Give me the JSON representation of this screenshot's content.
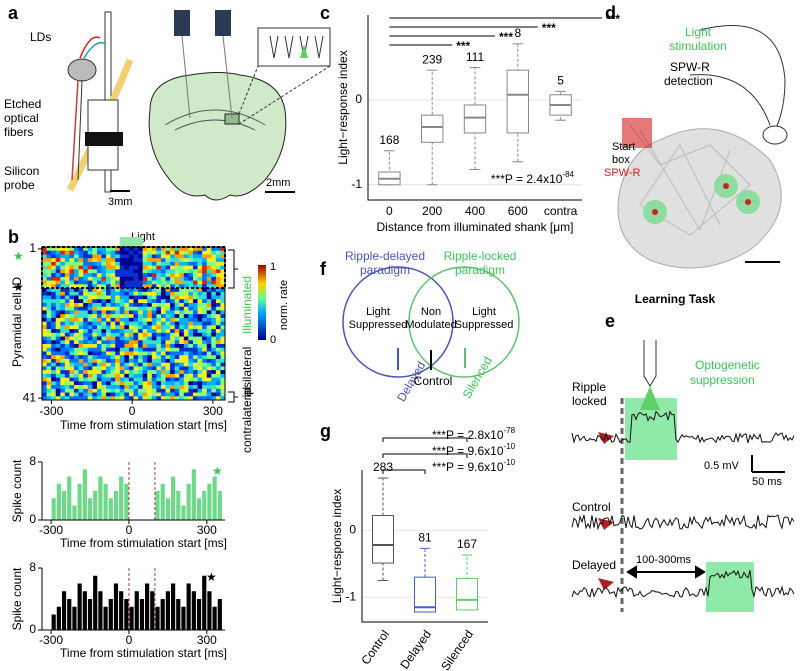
{
  "figure": {
    "panel_labels": [
      "a",
      "b",
      "c",
      "d",
      "e",
      "f",
      "g"
    ],
    "a": {
      "lds": "LDs",
      "fibers": [
        "Etched",
        "optical",
        "fibers"
      ],
      "probe": [
        "Silicon",
        "probe"
      ],
      "scale_left": "3mm",
      "scale_right": "2mm"
    },
    "b": {
      "light": "Light",
      "colorbar_label": "norm. rate",
      "colorbar_ticks": [
        "1",
        "0"
      ],
      "illuminated": "Illuminated",
      "ipsilateral": "ipsilateral",
      "contralateral": "contralateral",
      "ylabel": "Pyramidal cell ID"
    },
    "d": {
      "light_stimulation": [
        "Light",
        "stimulation"
      ],
      "detection": [
        "SPW-R",
        "detection"
      ],
      "start_box": [
        "Start",
        "box"
      ],
      "spwr": "SPW-R",
      "title": "Learning Task"
    },
    "e": {
      "ripple_locked": [
        "Ripple",
        "locked"
      ],
      "optogenetic": [
        "Optogenetic",
        "suppression"
      ],
      "scale_mv": "0.5 mV",
      "scale_ms": "50 ms",
      "control": "Control",
      "delayed": "Delayed",
      "interval": "100-300ms"
    },
    "f": {
      "delayed_paradigm": [
        "Ripple-delayed",
        "paradigm"
      ],
      "locked_paradigm": [
        "Ripple-locked",
        "paradigm"
      ],
      "left": [
        "Light",
        "Suppressed"
      ],
      "middle": [
        "Non",
        "Modulated"
      ],
      "right": [
        "Light",
        "Suppressed"
      ],
      "delayed": "Delayed",
      "control": "Control",
      "silenced": "Silenced"
    }
  },
  "chart_data": [
    {
      "type": "heatmap",
      "xlabel": "Time from stimulation start [ms]",
      "xlim": [
        -335,
        345
      ],
      "xticks": [
        -300,
        0,
        300
      ],
      "ylim": [
        0.5,
        41.5
      ],
      "yticks": [
        1,
        41
      ]
    },
    {
      "type": "box",
      "ylabel": "Light−response index",
      "xlabel": "Distance from illuminated shank [μm]",
      "categories": [
        "0",
        "200",
        "400",
        "600",
        "contra"
      ],
      "color": "#888888",
      "boxes": [
        {
          "whislo": -1.0,
          "q1": -1.0,
          "med": -0.93,
          "q3": -0.85,
          "whishi": -0.6
        },
        {
          "whislo": -1.0,
          "q1": -0.5,
          "med": -0.32,
          "q3": -0.18,
          "whishi": 0.35
        },
        {
          "whislo": -0.82,
          "q1": -0.39,
          "med": -0.21,
          "q3": -0.06,
          "whishi": 0.38
        },
        {
          "whislo": -0.73,
          "q1": -0.39,
          "med": 0.06,
          "q3": 0.35,
          "whishi": 0.66
        },
        {
          "whislo": -0.24,
          "q1": -0.18,
          "med": -0.06,
          "q3": 0.06,
          "whishi": 0.1
        }
      ],
      "counts": [
        168,
        239,
        111,
        8,
        5
      ],
      "significance": [
        "***",
        "***",
        "***",
        "***"
      ],
      "annotation": {
        "text": "***P = 2.4x10",
        "exponent": "-84"
      },
      "ylim": [
        -1.18,
        1.0
      ],
      "yticks": [
        -1,
        0
      ]
    },
    {
      "type": "histogram",
      "ylabel": "Spike count",
      "xlabel": "Time from stimulation start [ms]",
      "color": "#6fd98a",
      "bins": [
        -300,
        -280,
        -260,
        -240,
        -220,
        -200,
        -180,
        -160,
        -140,
        -120,
        -100,
        -80,
        -60,
        -40,
        -20,
        0,
        20,
        40,
        60,
        80,
        100,
        120,
        140,
        160,
        180,
        200,
        220,
        240,
        260,
        280,
        300,
        320,
        340,
        360
      ],
      "values": [
        3,
        5,
        4,
        6,
        2,
        5,
        7,
        3,
        4,
        6,
        5,
        3,
        4,
        6,
        5,
        0,
        0,
        0,
        0,
        0,
        4,
        5,
        3,
        6,
        4,
        2,
        5,
        7,
        3,
        4,
        5,
        6,
        4
      ],
      "vlines": [
        0,
        100
      ],
      "xlim": [
        -335,
        370
      ],
      "xticks": [
        -300,
        0,
        300
      ],
      "ylim": [
        0,
        8
      ],
      "yticks": [
        0,
        8
      ]
    },
    {
      "type": "histogram",
      "ylabel": "Spike count",
      "xlabel": "Time from stimulation start [ms]",
      "color": "#000000",
      "bins": [
        -300,
        -280,
        -260,
        -240,
        -220,
        -200,
        -180,
        -160,
        -140,
        -120,
        -100,
        -80,
        -60,
        -40,
        -20,
        0,
        20,
        40,
        60,
        80,
        100,
        120,
        140,
        160,
        180,
        200,
        220,
        240,
        260,
        280,
        300,
        320,
        340,
        360
      ],
      "values": [
        2,
        3,
        5,
        4,
        3,
        6,
        5,
        4,
        7,
        5,
        3,
        4,
        6,
        5,
        4,
        3,
        5,
        4,
        6,
        5,
        3,
        4,
        5,
        6,
        4,
        3,
        6,
        5,
        4,
        7,
        5,
        3,
        4
      ],
      "vlines": [
        0,
        100
      ],
      "xlim": [
        -335,
        370
      ],
      "xticks": [
        -300,
        0,
        300
      ],
      "ylim": [
        0,
        8
      ],
      "yticks": [
        0,
        8
      ]
    },
    {
      "type": "box",
      "ylabel": "Light−response index",
      "categories": [
        "Control",
        "Delayed",
        "Silenced"
      ],
      "colors": [
        "#555555",
        "#4a5fc1",
        "#5fd068"
      ],
      "boxes": [
        {
          "whislo": -0.75,
          "q1": -0.49,
          "med": -0.22,
          "q3": 0.22,
          "whishi": 0.78
        },
        {
          "whislo": -1.22,
          "q1": -1.22,
          "med": -1.15,
          "q3": -0.7,
          "whishi": -0.27
        },
        {
          "whislo": -1.19,
          "q1": -1.19,
          "med": -1.04,
          "q3": -0.72,
          "whishi": -0.37
        }
      ],
      "counts": [
        283,
        81,
        167
      ],
      "annotations": [
        {
          "text": "***P = 2.8x10",
          "exponent": "-78"
        },
        {
          "text": "***P = 9.6x10",
          "exponent": "-10"
        },
        {
          "text": "***P = 9.6x10",
          "exponent": "-10"
        }
      ],
      "ylim": [
        -1.37,
        0.9
      ],
      "yticks": [
        -1,
        0
      ]
    }
  ]
}
